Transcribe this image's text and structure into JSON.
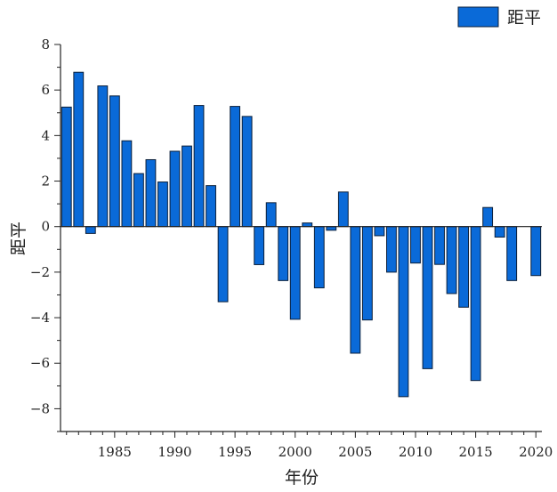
{
  "chart_data": {
    "type": "bar",
    "title": "",
    "xlabel": "年份",
    "ylabel": "距平",
    "ylim": [
      -9,
      8
    ],
    "xlim": [
      1980.5,
      2020.5
    ],
    "yticks": [
      -8,
      -6,
      -4,
      -2,
      0,
      2,
      4,
      6,
      8
    ],
    "xticks": [
      1985,
      1990,
      1995,
      2000,
      2005,
      2010,
      2015,
      2020
    ],
    "legend": {
      "position": "top-right",
      "label": "距平"
    },
    "colors": {
      "bar": "#0a6ad8",
      "bar_edge": "#0b1f3a",
      "axis": "#222222"
    },
    "series": [
      {
        "name": "距平",
        "x": [
          1981,
          1982,
          1983,
          1984,
          1985,
          1986,
          1987,
          1988,
          1989,
          1990,
          1991,
          1992,
          1993,
          1994,
          1995,
          1996,
          1997,
          1998,
          1999,
          2000,
          2001,
          2002,
          2003,
          2004,
          2005,
          2006,
          2007,
          2008,
          2009,
          2010,
          2011,
          2012,
          2013,
          2014,
          2015,
          2016,
          2017,
          2018,
          2020
        ],
        "values": [
          5.25,
          6.78,
          -0.3,
          6.18,
          5.74,
          3.77,
          2.33,
          2.94,
          1.96,
          3.31,
          3.54,
          5.32,
          1.8,
          -3.3,
          5.28,
          4.84,
          -1.67,
          1.05,
          -2.37,
          -4.07,
          0.16,
          -2.69,
          -0.16,
          1.52,
          -5.56,
          -4.1,
          -0.4,
          -2.0,
          -7.47,
          -1.6,
          -6.24,
          -1.66,
          -2.94,
          -3.54,
          -6.76,
          0.84,
          -0.46,
          -2.37,
          -2.15
        ]
      }
    ]
  }
}
